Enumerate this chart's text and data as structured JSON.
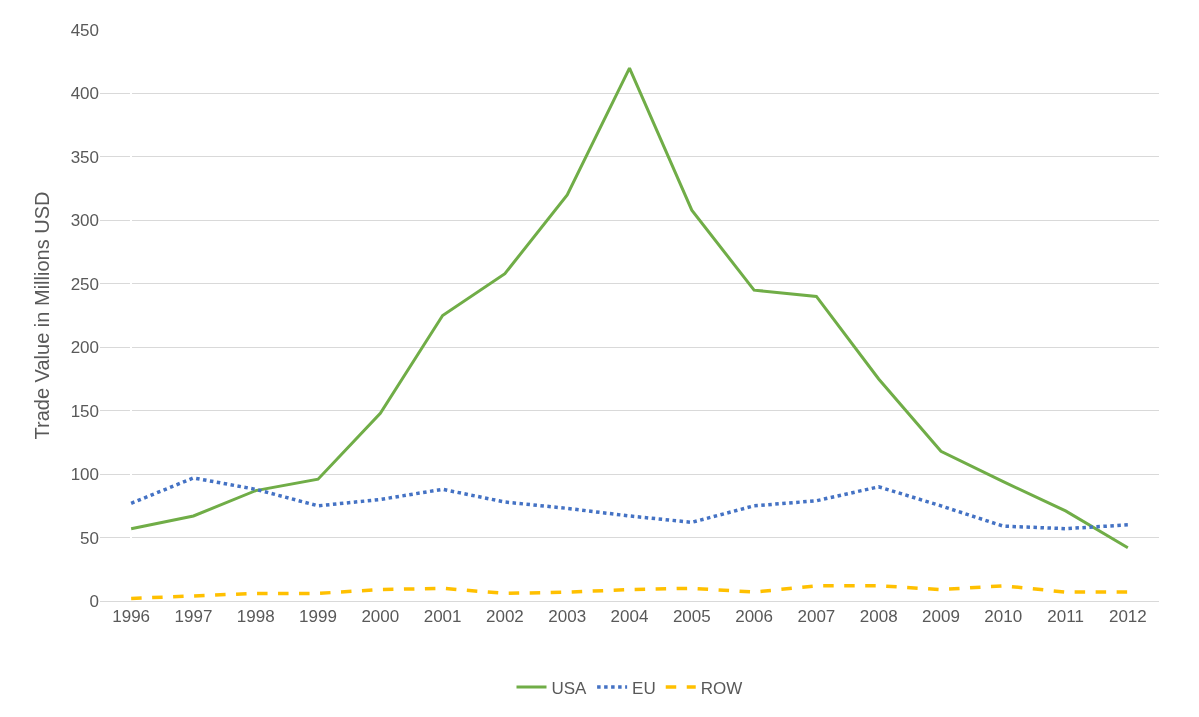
{
  "chart_data": {
    "type": "line",
    "ylabel": "Trade Value in Millions USD",
    "categories": [
      "1996",
      "1997",
      "1998",
      "1999",
      "2000",
      "2001",
      "2002",
      "2003",
      "2004",
      "2005",
      "2006",
      "2007",
      "2008",
      "2009",
      "2010",
      "2011",
      "2012"
    ],
    "series": [
      {
        "name": "USA",
        "color": "#70ad47",
        "line_style": "solid",
        "values": [
          57,
          67,
          87,
          96,
          148,
          225,
          258,
          320,
          420,
          308,
          245,
          240,
          175,
          118,
          94,
          71,
          42
        ]
      },
      {
        "name": "EU",
        "color": "#4472c4",
        "line_style": "dotted",
        "values": [
          77,
          97,
          88,
          75,
          80,
          88,
          78,
          73,
          67,
          62,
          75,
          79,
          90,
          75,
          59,
          57,
          60
        ]
      },
      {
        "name": "ROW",
        "color": "#ffc000",
        "line_style": "dashed",
        "values": [
          2,
          4,
          6,
          6,
          9,
          10,
          6,
          7,
          9,
          10,
          7,
          12,
          12,
          9,
          12,
          7,
          7
        ]
      }
    ],
    "ylim": [
      0,
      450
    ],
    "yticks": [
      0,
      50,
      100,
      150,
      200,
      250,
      300,
      350,
      400,
      450
    ],
    "grid": "y",
    "legend": "bottom",
    "marker": "none"
  }
}
